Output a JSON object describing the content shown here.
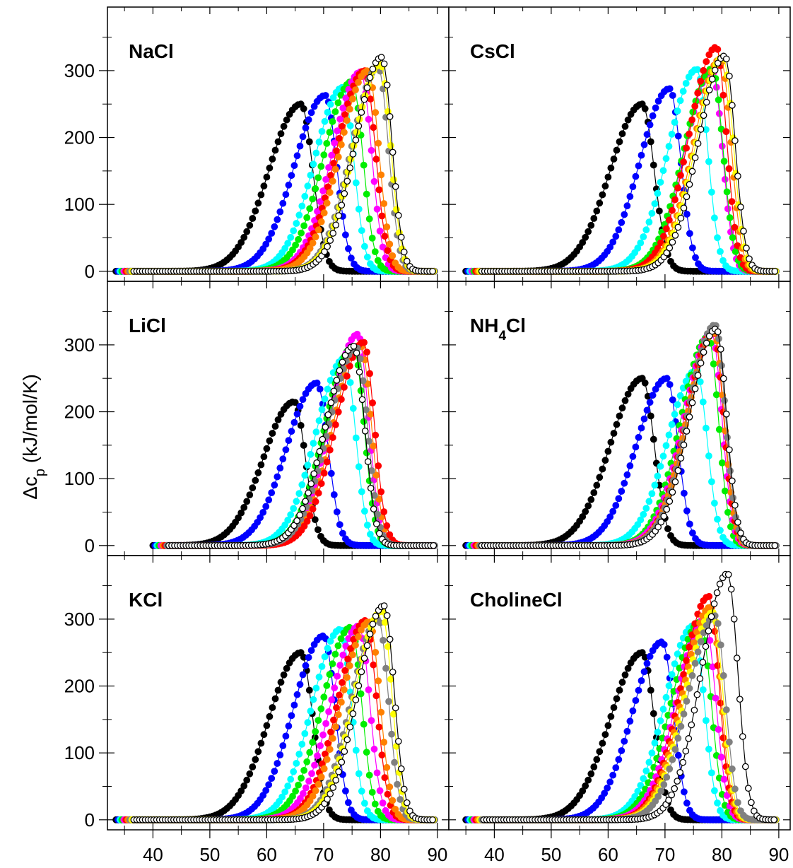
{
  "figure": {
    "ylabel_main": "Δc",
    "ylabel_sub": "p",
    "ylabel_rest": " (kJ/mol/K)"
  },
  "chart_data": {
    "type": "scatter",
    "layout": "3x2 grid, shared axes",
    "x_ticks": [
      40,
      50,
      60,
      70,
      80,
      90
    ],
    "x_tick_labels": [
      "40",
      "50",
      "60",
      "70",
      "80",
      "90"
    ],
    "xlim": [
      32,
      92
    ],
    "y_ticks": [
      0,
      100,
      200,
      300
    ],
    "y_tick_labels": [
      "0",
      "100",
      "200",
      "300"
    ],
    "ylim": [
      -15,
      395
    ],
    "grid": false,
    "legend": "none",
    "panels": [
      {
        "label": "NaCl",
        "label_parts": [
          "NaCl",
          "",
          ""
        ],
        "start": 33.5,
        "series": [
          {
            "color": "#000000",
            "filled": true,
            "tm": 66.0,
            "peak": 250,
            "wl": 5.6,
            "wr": 2.1
          },
          {
            "color": "#0000ff",
            "filled": true,
            "tm": 70.3,
            "peak": 263,
            "wl": 5.4,
            "wr": 2.0
          },
          {
            "color": "#00ffff",
            "filled": true,
            "tm": 73.4,
            "peak": 275,
            "wl": 5.0,
            "wr": 1.9
          },
          {
            "color": "#00ee00",
            "filled": true,
            "tm": 75.0,
            "peak": 284,
            "wl": 5.0,
            "wr": 1.9
          },
          {
            "color": "#ff00ff",
            "filled": true,
            "tm": 76.5,
            "peak": 298,
            "wl": 4.9,
            "wr": 1.9
          },
          {
            "color": "#ff0000",
            "filled": true,
            "tm": 77.2,
            "peak": 300,
            "wl": 4.9,
            "wr": 1.9
          },
          {
            "color": "#ff8000",
            "filled": true,
            "tm": 77.8,
            "peak": 300,
            "wl": 4.9,
            "wr": 1.9
          },
          {
            "color": "#808080",
            "filled": true,
            "tm": 79.6,
            "peak": 305,
            "wl": 4.7,
            "wr": 1.8
          },
          {
            "color": "#ffff00",
            "filled": true,
            "tm": 80.0,
            "peak": 310,
            "wl": 4.7,
            "wr": 1.8
          },
          {
            "color": "#ffffff",
            "filled": false,
            "tm": 80.2,
            "peak": 320,
            "wl": 4.6,
            "wr": 1.8
          }
        ]
      },
      {
        "label": "CsCl",
        "label_parts": [
          "CsCl",
          "",
          ""
        ],
        "start": 35.0,
        "series": [
          {
            "color": "#000000",
            "filled": true,
            "tm": 66.0,
            "peak": 250,
            "wl": 5.6,
            "wr": 2.1
          },
          {
            "color": "#0000ff",
            "filled": true,
            "tm": 70.8,
            "peak": 273,
            "wl": 5.2,
            "wr": 2.0
          },
          {
            "color": "#00ffff",
            "filled": true,
            "tm": 75.6,
            "peak": 302,
            "wl": 5.0,
            "wr": 1.9
          },
          {
            "color": "#ff00ff",
            "filled": true,
            "tm": 78.3,
            "peak": 300,
            "wl": 4.8,
            "wr": 1.8
          },
          {
            "color": "#00ee00",
            "filled": true,
            "tm": 78.3,
            "peak": 303,
            "wl": 4.9,
            "wr": 1.9
          },
          {
            "color": "#ff0000",
            "filled": true,
            "tm": 79.0,
            "peak": 335,
            "wl": 4.8,
            "wr": 1.8
          },
          {
            "color": "#ff8000",
            "filled": true,
            "tm": 79.8,
            "peak": 318,
            "wl": 4.7,
            "wr": 1.8
          },
          {
            "color": "#ffff00",
            "filled": true,
            "tm": 80.2,
            "peak": 320,
            "wl": 4.7,
            "wr": 1.8
          },
          {
            "color": "#ffffff",
            "filled": false,
            "tm": 80.5,
            "peak": 322,
            "wl": 4.6,
            "wr": 1.8
          }
        ]
      },
      {
        "label": "LiCl",
        "label_parts": [
          "LiCl",
          "",
          ""
        ],
        "start": 40.0,
        "series": [
          {
            "color": "#000000",
            "filled": true,
            "tm": 64.8,
            "peak": 215,
            "wl": 5.4,
            "wr": 2.0
          },
          {
            "color": "#0000ff",
            "filled": true,
            "tm": 68.8,
            "peak": 243,
            "wl": 5.3,
            "wr": 2.0
          },
          {
            "color": "#00ffff",
            "filled": true,
            "tm": 73.7,
            "peak": 280,
            "wl": 5.0,
            "wr": 1.9
          },
          {
            "color": "#00ee00",
            "filled": true,
            "tm": 75.2,
            "peak": 298,
            "wl": 4.9,
            "wr": 1.9
          },
          {
            "color": "#ff00ff",
            "filled": true,
            "tm": 76.0,
            "peak": 316,
            "wl": 4.8,
            "wr": 1.9
          },
          {
            "color": "#ff8000",
            "filled": true,
            "tm": 76.5,
            "peak": 300,
            "wl": 4.8,
            "wr": 1.9
          },
          {
            "color": "#ff0000",
            "filled": true,
            "tm": 77.0,
            "peak": 304,
            "wl": 4.8,
            "wr": 1.9
          },
          {
            "color": "#808080",
            "filled": true,
            "tm": 75.8,
            "peak": 296,
            "wl": 4.9,
            "wr": 1.9
          },
          {
            "color": "#ffffff",
            "filled": false,
            "tm": 75.3,
            "peak": 298,
            "wl": 4.9,
            "wr": 1.9
          }
        ]
      },
      {
        "label": "NH4Cl",
        "label_parts": [
          "NH",
          "4",
          "Cl"
        ],
        "start": 35.0,
        "series": [
          {
            "color": "#000000",
            "filled": true,
            "tm": 66.0,
            "peak": 250,
            "wl": 5.6,
            "wr": 2.1
          },
          {
            "color": "#0000ff",
            "filled": true,
            "tm": 70.3,
            "peak": 250,
            "wl": 5.3,
            "wr": 2.0
          },
          {
            "color": "#00ffff",
            "filled": true,
            "tm": 75.5,
            "peak": 262,
            "wl": 5.0,
            "wr": 1.9
          },
          {
            "color": "#00ee00",
            "filled": true,
            "tm": 77.6,
            "peak": 312,
            "wl": 4.8,
            "wr": 1.8
          },
          {
            "color": "#ff00ff",
            "filled": true,
            "tm": 78.2,
            "peak": 318,
            "wl": 4.8,
            "wr": 1.8
          },
          {
            "color": "#ff0000",
            "filled": true,
            "tm": 78.5,
            "peak": 320,
            "wl": 4.7,
            "wr": 1.8
          },
          {
            "color": "#ff8000",
            "filled": true,
            "tm": 78.6,
            "peak": 318,
            "wl": 4.7,
            "wr": 1.8
          },
          {
            "color": "#808080",
            "filled": true,
            "tm": 78.8,
            "peak": 330,
            "wl": 4.7,
            "wr": 1.8
          },
          {
            "color": "#ffffff",
            "filled": false,
            "tm": 79.0,
            "peak": 324,
            "wl": 4.6,
            "wr": 1.8
          }
        ]
      },
      {
        "label": "KCl",
        "label_parts": [
          "KCl",
          "",
          ""
        ],
        "start": 33.5,
        "series": [
          {
            "color": "#000000",
            "filled": true,
            "tm": 66.0,
            "peak": 250,
            "wl": 5.6,
            "wr": 2.1
          },
          {
            "color": "#0000ff",
            "filled": true,
            "tm": 70.0,
            "peak": 275,
            "wl": 5.3,
            "wr": 2.0
          },
          {
            "color": "#00ffff",
            "filled": true,
            "tm": 73.0,
            "peak": 285,
            "wl": 5.0,
            "wr": 1.9
          },
          {
            "color": "#00ee00",
            "filled": true,
            "tm": 74.8,
            "peak": 288,
            "wl": 5.0,
            "wr": 1.9
          },
          {
            "color": "#ff00ff",
            "filled": true,
            "tm": 76.2,
            "peak": 290,
            "wl": 4.9,
            "wr": 1.9
          },
          {
            "color": "#ff0000",
            "filled": true,
            "tm": 77.4,
            "peak": 298,
            "wl": 4.8,
            "wr": 1.9
          },
          {
            "color": "#ff8000",
            "filled": true,
            "tm": 78.0,
            "peak": 296,
            "wl": 4.8,
            "wr": 1.9
          },
          {
            "color": "#808080",
            "filled": true,
            "tm": 79.6,
            "peak": 300,
            "wl": 4.7,
            "wr": 1.8
          },
          {
            "color": "#ffff00",
            "filled": true,
            "tm": 80.2,
            "peak": 312,
            "wl": 4.7,
            "wr": 1.8
          },
          {
            "color": "#ffffff",
            "filled": false,
            "tm": 80.6,
            "peak": 320,
            "wl": 4.6,
            "wr": 1.8
          }
        ]
      },
      {
        "label": "CholineCl",
        "label_parts": [
          "CholineCl",
          "",
          ""
        ],
        "start": 35.0,
        "series": [
          {
            "color": "#000000",
            "filled": true,
            "tm": 66.0,
            "peak": 250,
            "wl": 5.6,
            "wr": 2.1
          },
          {
            "color": "#0000ff",
            "filled": true,
            "tm": 69.5,
            "peak": 266,
            "wl": 5.2,
            "wr": 2.0
          },
          {
            "color": "#00ffff",
            "filled": true,
            "tm": 75.0,
            "peak": 290,
            "wl": 5.0,
            "wr": 1.9
          },
          {
            "color": "#00ee00",
            "filled": true,
            "tm": 76.2,
            "peak": 296,
            "wl": 5.0,
            "wr": 1.9
          },
          {
            "color": "#ff00ff",
            "filled": true,
            "tm": 77.0,
            "peak": 300,
            "wl": 4.9,
            "wr": 1.9
          },
          {
            "color": "#ff0000",
            "filled": true,
            "tm": 77.7,
            "peak": 334,
            "wl": 4.8,
            "wr": 1.8
          },
          {
            "color": "#ff8000",
            "filled": true,
            "tm": 78.0,
            "peak": 318,
            "wl": 4.8,
            "wr": 1.8
          },
          {
            "color": "#ffff00",
            "filled": true,
            "tm": 78.4,
            "peak": 310,
            "wl": 4.8,
            "wr": 1.8
          },
          {
            "color": "#808080",
            "filled": true,
            "tm": 78.8,
            "peak": 305,
            "wl": 4.8,
            "wr": 1.8
          },
          {
            "color": "#ffffff",
            "filled": false,
            "tm": 81.0,
            "peak": 368,
            "wl": 4.6,
            "wr": 1.8
          }
        ]
      }
    ]
  }
}
